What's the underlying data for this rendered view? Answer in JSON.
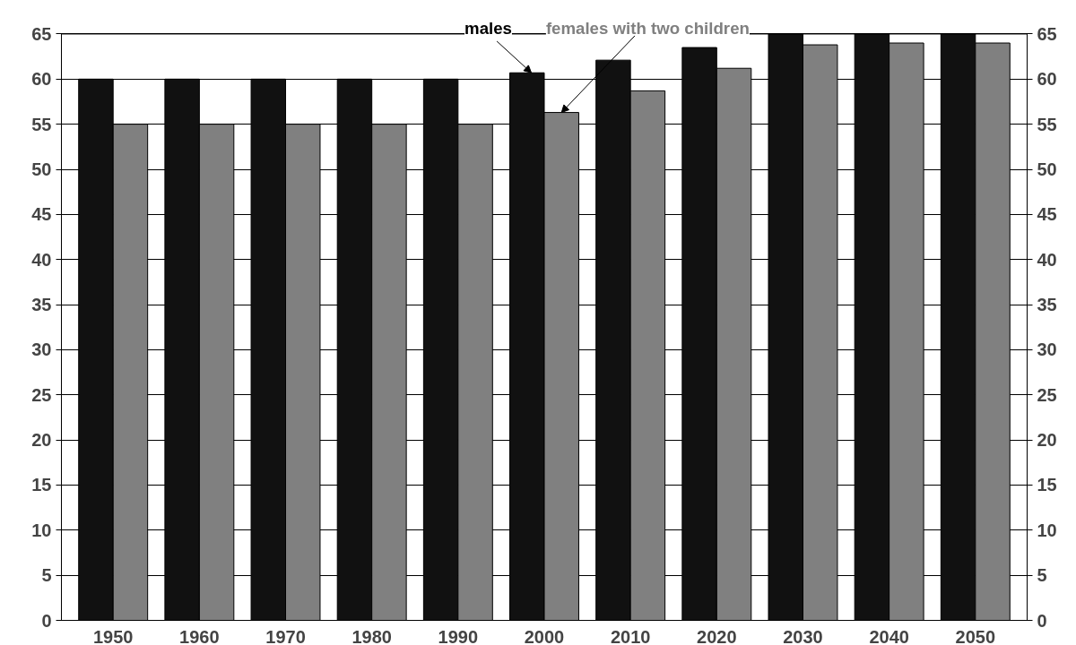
{
  "chart_data": {
    "type": "bar",
    "categories": [
      "1950",
      "1960",
      "1970",
      "1980",
      "1990",
      "2000",
      "2010",
      "2020",
      "2030",
      "2040",
      "2050"
    ],
    "series": [
      {
        "name": "males",
        "color": "#111111",
        "values": [
          60,
          60,
          60,
          60,
          60,
          60.7,
          62.1,
          63.5,
          65,
          65,
          65
        ]
      },
      {
        "name": "females with two children",
        "color": "#808080",
        "values": [
          55,
          55,
          55,
          55,
          55,
          56.3,
          58.7,
          61.2,
          63.8,
          64,
          64
        ]
      }
    ],
    "ylim": [
      0,
      65
    ],
    "yticks": [
      0,
      5,
      10,
      15,
      20,
      25,
      30,
      35,
      40,
      45,
      50,
      55,
      60,
      65
    ],
    "y2lim": [
      0,
      65
    ],
    "y2ticks": [
      0,
      5,
      10,
      15,
      20,
      25,
      30,
      35,
      40,
      45,
      50,
      55,
      60,
      65
    ],
    "grid": "y"
  }
}
